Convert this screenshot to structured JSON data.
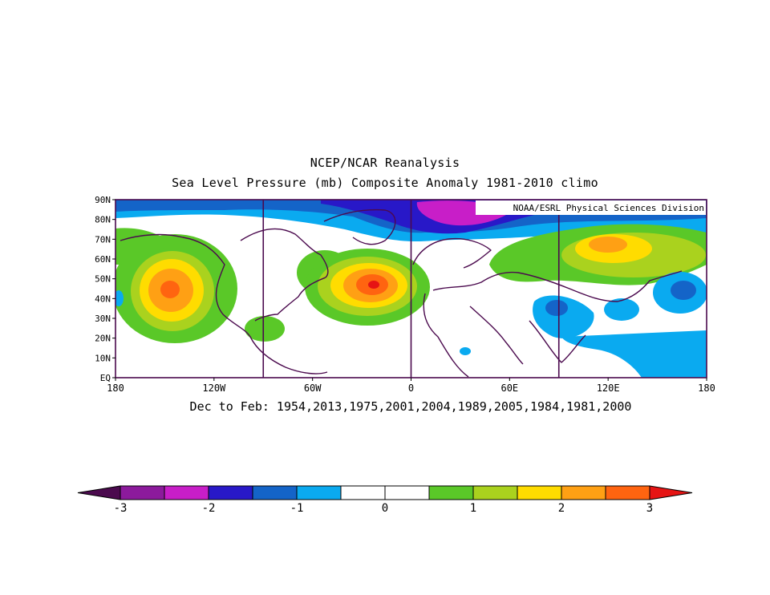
{
  "title_line1": "NCEP/NCAR Reanalysis",
  "title_line2": "Sea Level Pressure (mb) Composite Anomaly 1981-2010 climo",
  "credit": "NOAA/ESRL Physical Sciences Division",
  "caption": "Dec to Feb: 1954,2013,1975,2001,2004,1989,2005,1984,1981,2000",
  "map": {
    "lon_range": [
      -180,
      180
    ],
    "lat_range": [
      0,
      90
    ],
    "lon_ticks": [
      "180",
      "120W",
      "60W",
      "0",
      "60E",
      "120E",
      "180"
    ],
    "lat_ticks": [
      "EQ",
      "10N",
      "20N",
      "30N",
      "40N",
      "50N",
      "60N",
      "70N",
      "80N",
      "90N"
    ],
    "reference_lines_lon": [
      -90,
      0,
      90
    ]
  },
  "colorbar": {
    "labels": [
      "-3",
      "-2",
      "-1",
      "0",
      "1",
      "2",
      "3"
    ],
    "colors": [
      "#4b0a4e",
      "#8c1a9c",
      "#c81ec8",
      "#2818c8",
      "#1464c8",
      "#0aaaf0",
      "#ffffff",
      "#ffffff",
      "#5ac828",
      "#aad21e",
      "#ffdc00",
      "#ffa014",
      "#ff6410",
      "#e61414"
    ]
  }
}
